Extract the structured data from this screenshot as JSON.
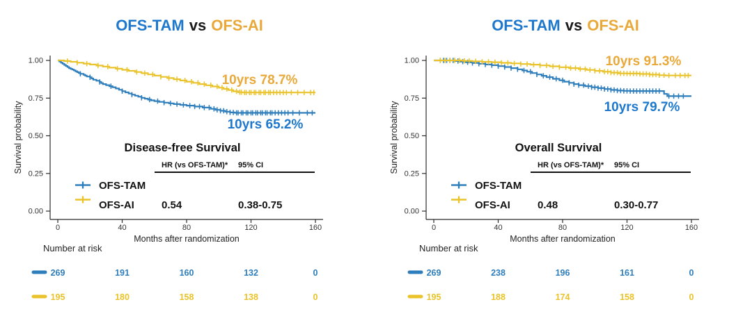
{
  "colors": {
    "blue_curve": "#2E7EBC",
    "blue_text": "#1D78CD",
    "yellow_curve": "#EAC32A",
    "yellow_text": "#E9A93A",
    "axis": "#2b2b2b",
    "ink": "#111111"
  },
  "panels": [
    {
      "title": {
        "left": "OFS-TAM",
        "mid": "vs",
        "right": "OFS-AI"
      },
      "annotations": [
        {
          "series": "OFS-AI",
          "text": "10yrs 78.7%"
        },
        {
          "series": "OFS-TAM",
          "text": "10yrs 65.2%"
        }
      ],
      "stats": {
        "heading": "Disease-free Survival",
        "hr_header": "HR (vs OFS-TAM)*",
        "ci_header": "95% CI",
        "rows": [
          {
            "label": "OFS-TAM",
            "hr": "",
            "ci": ""
          },
          {
            "label": "OFS-AI",
            "hr": "0.54",
            "ci": "0.38-0.75"
          }
        ]
      },
      "yaxis": {
        "label": "Survival probability",
        "ticks": [
          "1.00",
          "0.75",
          "0.50",
          "0.25",
          "0.00"
        ]
      },
      "xaxis": {
        "label": "Months after randomization",
        "ticks": [
          "0",
          "40",
          "80",
          "120",
          "160"
        ]
      },
      "risk": {
        "heading": "Number at risk",
        "rows": [
          {
            "series": "OFS-TAM",
            "values": [
              "269",
              "191",
              "160",
              "132",
              "0"
            ]
          },
          {
            "series": "OFS-AI",
            "values": [
              "195",
              "180",
              "158",
              "138",
              "0"
            ]
          }
        ]
      }
    },
    {
      "title": {
        "left": "OFS-TAM",
        "mid": "vs",
        "right": "OFS-AI"
      },
      "annotations": [
        {
          "series": "OFS-AI",
          "text": "10yrs 91.3%"
        },
        {
          "series": "OFS-TAM",
          "text": "10yrs 79.7%"
        }
      ],
      "stats": {
        "heading": "Overall Survival",
        "hr_header": "HR (vs OFS-TAM)*",
        "ci_header": "95% CI",
        "rows": [
          {
            "label": "OFS-TAM",
            "hr": "",
            "ci": ""
          },
          {
            "label": "OFS-AI",
            "hr": "0.48",
            "ci": "0.30-0.77"
          }
        ]
      },
      "yaxis": {
        "label": "Survival probability",
        "ticks": [
          "1.00",
          "0.75",
          "0.50",
          "0.25",
          "0.00"
        ]
      },
      "xaxis": {
        "label": "Months after randomization",
        "ticks": [
          "0",
          "40",
          "80",
          "120",
          "160"
        ]
      },
      "risk": {
        "heading": "Number at risk",
        "rows": [
          {
            "series": "OFS-TAM",
            "values": [
              "269",
              "238",
              "196",
              "161",
              "0"
            ]
          },
          {
            "series": "OFS-AI",
            "values": [
              "195",
              "188",
              "174",
              "158",
              "0"
            ]
          }
        ]
      }
    }
  ],
  "chart_data": [
    {
      "type": "line",
      "subtype": "kaplan-meier",
      "title": "OFS-TAM vs OFS-AI",
      "endpoint": "Disease-free Survival",
      "xlabel": "Months after randomization",
      "ylabel": "Survival probability",
      "xlim": [
        0,
        165
      ],
      "ylim": [
        0,
        1.0
      ],
      "xticks": [
        0,
        40,
        80,
        120,
        160
      ],
      "yticks": [
        0.0,
        0.25,
        0.5,
        0.75,
        1.0
      ],
      "grid": false,
      "legend_position": "inside-bottom-left",
      "hazard_ratio": {
        "comparison": "OFS-AI vs OFS-TAM",
        "hr": 0.54,
        "ci95": [
          0.38,
          0.75
        ]
      },
      "ten_year_survival_pct": {
        "OFS-AI": 78.7,
        "OFS-TAM": 65.2
      },
      "number_at_risk": {
        "times": [
          0,
          40,
          80,
          120,
          160
        ],
        "OFS-TAM": [
          269,
          191,
          160,
          132,
          0
        ],
        "OFS-AI": [
          195,
          180,
          158,
          138,
          0
        ]
      },
      "series": [
        {
          "name": "OFS-TAM",
          "color_key": "blue_curve",
          "points": [
            [
              0,
              1
            ],
            [
              1,
              0.993
            ],
            [
              2,
              0.985
            ],
            [
              3,
              0.978
            ],
            [
              4,
              0.97
            ],
            [
              5,
              0.963
            ],
            [
              6,
              0.956
            ],
            [
              7,
              0.949
            ],
            [
              8,
              0.944
            ],
            [
              9,
              0.939
            ],
            [
              10,
              0.934
            ],
            [
              11,
              0.928
            ],
            [
              12,
              0.922
            ],
            [
              13,
              0.916
            ],
            [
              14,
              0.911
            ],
            [
              16,
              0.905
            ],
            [
              17,
              0.899
            ],
            [
              18,
              0.893
            ],
            [
              20,
              0.888
            ],
            [
              21,
              0.88
            ],
            [
              22,
              0.872
            ],
            [
              24,
              0.865
            ],
            [
              26,
              0.857
            ],
            [
              27,
              0.85
            ],
            [
              28,
              0.843
            ],
            [
              30,
              0.836
            ],
            [
              32,
              0.829
            ],
            [
              34,
              0.822
            ],
            [
              36,
              0.814
            ],
            [
              38,
              0.805
            ],
            [
              40,
              0.796
            ],
            [
              42,
              0.788
            ],
            [
              44,
              0.78
            ],
            [
              46,
              0.773
            ],
            [
              48,
              0.766
            ],
            [
              50,
              0.759
            ],
            [
              52,
              0.752
            ],
            [
              54,
              0.746
            ],
            [
              56,
              0.74
            ],
            [
              58,
              0.735
            ],
            [
              60,
              0.73
            ],
            [
              63,
              0.725
            ],
            [
              66,
              0.72
            ],
            [
              69,
              0.715
            ],
            [
              72,
              0.71
            ],
            [
              76,
              0.705
            ],
            [
              80,
              0.7
            ],
            [
              85,
              0.694
            ],
            [
              90,
              0.687
            ],
            [
              95,
              0.679
            ],
            [
              98,
              0.672
            ],
            [
              101,
              0.666
            ],
            [
              104,
              0.66
            ],
            [
              107,
              0.655
            ],
            [
              110,
              0.652
            ],
            [
              160,
              0.652
            ]
          ],
          "censor_months": [
            14,
            20,
            26,
            33,
            40,
            46,
            52,
            57,
            62,
            66,
            70,
            74,
            78,
            82,
            85,
            88,
            91,
            94,
            97,
            99,
            101,
            103,
            105,
            107,
            109,
            111,
            112,
            114,
            115,
            117,
            118,
            120,
            121,
            123,
            124,
            126,
            127,
            129,
            130,
            132,
            133,
            135,
            137,
            139,
            141,
            143,
            146,
            150,
            155,
            158
          ]
        },
        {
          "name": "OFS-AI",
          "color_key": "yellow_curve",
          "points": [
            [
              0,
              1
            ],
            [
              4,
              0.996
            ],
            [
              8,
              0.991
            ],
            [
              12,
              0.985
            ],
            [
              16,
              0.979
            ],
            [
              20,
              0.973
            ],
            [
              24,
              0.966
            ],
            [
              28,
              0.959
            ],
            [
              32,
              0.952
            ],
            [
              36,
              0.945
            ],
            [
              40,
              0.938
            ],
            [
              44,
              0.931
            ],
            [
              48,
              0.923
            ],
            [
              52,
              0.915
            ],
            [
              56,
              0.907
            ],
            [
              60,
              0.899
            ],
            [
              64,
              0.891
            ],
            [
              68,
              0.883
            ],
            [
              72,
              0.875
            ],
            [
              76,
              0.867
            ],
            [
              80,
              0.859
            ],
            [
              84,
              0.851
            ],
            [
              88,
              0.843
            ],
            [
              92,
              0.835
            ],
            [
              96,
              0.827
            ],
            [
              100,
              0.819
            ],
            [
              103,
              0.811
            ],
            [
              106,
              0.803
            ],
            [
              109,
              0.795
            ],
            [
              112,
              0.789
            ],
            [
              115,
              0.787
            ],
            [
              160,
              0.787
            ]
          ],
          "censor_months": [
            6,
            12,
            18,
            25,
            31,
            37,
            43,
            49,
            54,
            59,
            64,
            69,
            74,
            79,
            83,
            87,
            91,
            95,
            99,
            102,
            105,
            108,
            111,
            113,
            114,
            116,
            117,
            119,
            120,
            122,
            123,
            125,
            126,
            128,
            129,
            131,
            132,
            134,
            136,
            138,
            140,
            142,
            145,
            149,
            153,
            157,
            159
          ]
        }
      ]
    },
    {
      "type": "line",
      "subtype": "kaplan-meier",
      "title": "OFS-TAM vs OFS-AI",
      "endpoint": "Overall Survival",
      "xlabel": "Months after randomization",
      "ylabel": "Survival probability",
      "xlim": [
        0,
        165
      ],
      "ylim": [
        0,
        1.0
      ],
      "xticks": [
        0,
        40,
        80,
        120,
        160
      ],
      "yticks": [
        0.0,
        0.25,
        0.5,
        0.75,
        1.0
      ],
      "grid": false,
      "legend_position": "inside-bottom-left",
      "hazard_ratio": {
        "comparison": "OFS-AI vs OFS-TAM",
        "hr": 0.48,
        "ci95": [
          0.3,
          0.77
        ]
      },
      "ten_year_survival_pct": {
        "OFS-AI": 91.3,
        "OFS-TAM": 79.7
      },
      "number_at_risk": {
        "times": [
          0,
          40,
          80,
          120,
          160
        ],
        "OFS-TAM": [
          269,
          238,
          196,
          161,
          0
        ],
        "OFS-AI": [
          195,
          188,
          174,
          158,
          0
        ]
      },
      "series": [
        {
          "name": "OFS-TAM",
          "color_key": "blue_curve",
          "points": [
            [
              0,
              1
            ],
            [
              10,
              1
            ],
            [
              13,
              0.996
            ],
            [
              16,
              0.992
            ],
            [
              20,
              0.988
            ],
            [
              24,
              0.983
            ],
            [
              28,
              0.978
            ],
            [
              32,
              0.973
            ],
            [
              36,
              0.968
            ],
            [
              40,
              0.962
            ],
            [
              44,
              0.956
            ],
            [
              48,
              0.949
            ],
            [
              52,
              0.941
            ],
            [
              55,
              0.933
            ],
            [
              58,
              0.925
            ],
            [
              61,
              0.916
            ],
            [
              64,
              0.907
            ],
            [
              67,
              0.898
            ],
            [
              70,
              0.889
            ],
            [
              74,
              0.878
            ],
            [
              78,
              0.868
            ],
            [
              81,
              0.859
            ],
            [
              84,
              0.851
            ],
            [
              87,
              0.843
            ],
            [
              90,
              0.836
            ],
            [
              94,
              0.829
            ],
            [
              98,
              0.822
            ],
            [
              102,
              0.816
            ],
            [
              106,
              0.81
            ],
            [
              110,
              0.804
            ],
            [
              114,
              0.8
            ],
            [
              118,
              0.798
            ],
            [
              122,
              0.797
            ],
            [
              142,
              0.797
            ],
            [
              143,
              0.778
            ],
            [
              145,
              0.763
            ],
            [
              160,
              0.763
            ]
          ],
          "censor_months": [
            4,
            6,
            8,
            10,
            12,
            15,
            18,
            21,
            24,
            28,
            32,
            36,
            40,
            44,
            48,
            52,
            56,
            60,
            64,
            68,
            72,
            76,
            80,
            84,
            87,
            90,
            93,
            96,
            98,
            100,
            102,
            104,
            106,
            108,
            110,
            112,
            114,
            116,
            118,
            120,
            122,
            124,
            126,
            128,
            130,
            132,
            134,
            136,
            138,
            140,
            146,
            149,
            152,
            155
          ]
        },
        {
          "name": "OFS-AI",
          "color_key": "yellow_curve",
          "points": [
            [
              0,
              1
            ],
            [
              15,
              1
            ],
            [
              18,
              0.997
            ],
            [
              24,
              0.994
            ],
            [
              30,
              0.991
            ],
            [
              36,
              0.988
            ],
            [
              42,
              0.984
            ],
            [
              48,
              0.98
            ],
            [
              54,
              0.976
            ],
            [
              60,
              0.972
            ],
            [
              66,
              0.967
            ],
            [
              72,
              0.961
            ],
            [
              78,
              0.955
            ],
            [
              84,
              0.949
            ],
            [
              90,
              0.943
            ],
            [
              95,
              0.937
            ],
            [
              100,
              0.931
            ],
            [
              105,
              0.925
            ],
            [
              110,
              0.919
            ],
            [
              115,
              0.914
            ],
            [
              120,
              0.913
            ],
            [
              128,
              0.91
            ],
            [
              134,
              0.906
            ],
            [
              140,
              0.902
            ],
            [
              144,
              0.9
            ],
            [
              160,
              0.9
            ]
          ],
          "censor_months": [
            4,
            7,
            10,
            13,
            16,
            19,
            22,
            26,
            30,
            34,
            38,
            42,
            46,
            50,
            54,
            58,
            62,
            66,
            70,
            74,
            78,
            82,
            85,
            88,
            91,
            94,
            97,
            100,
            103,
            106,
            108,
            110,
            112,
            114,
            116,
            118,
            120,
            122,
            124,
            126,
            128,
            130,
            132,
            134,
            136,
            138,
            140,
            143,
            146,
            150,
            153,
            156,
            158
          ]
        }
      ]
    }
  ]
}
